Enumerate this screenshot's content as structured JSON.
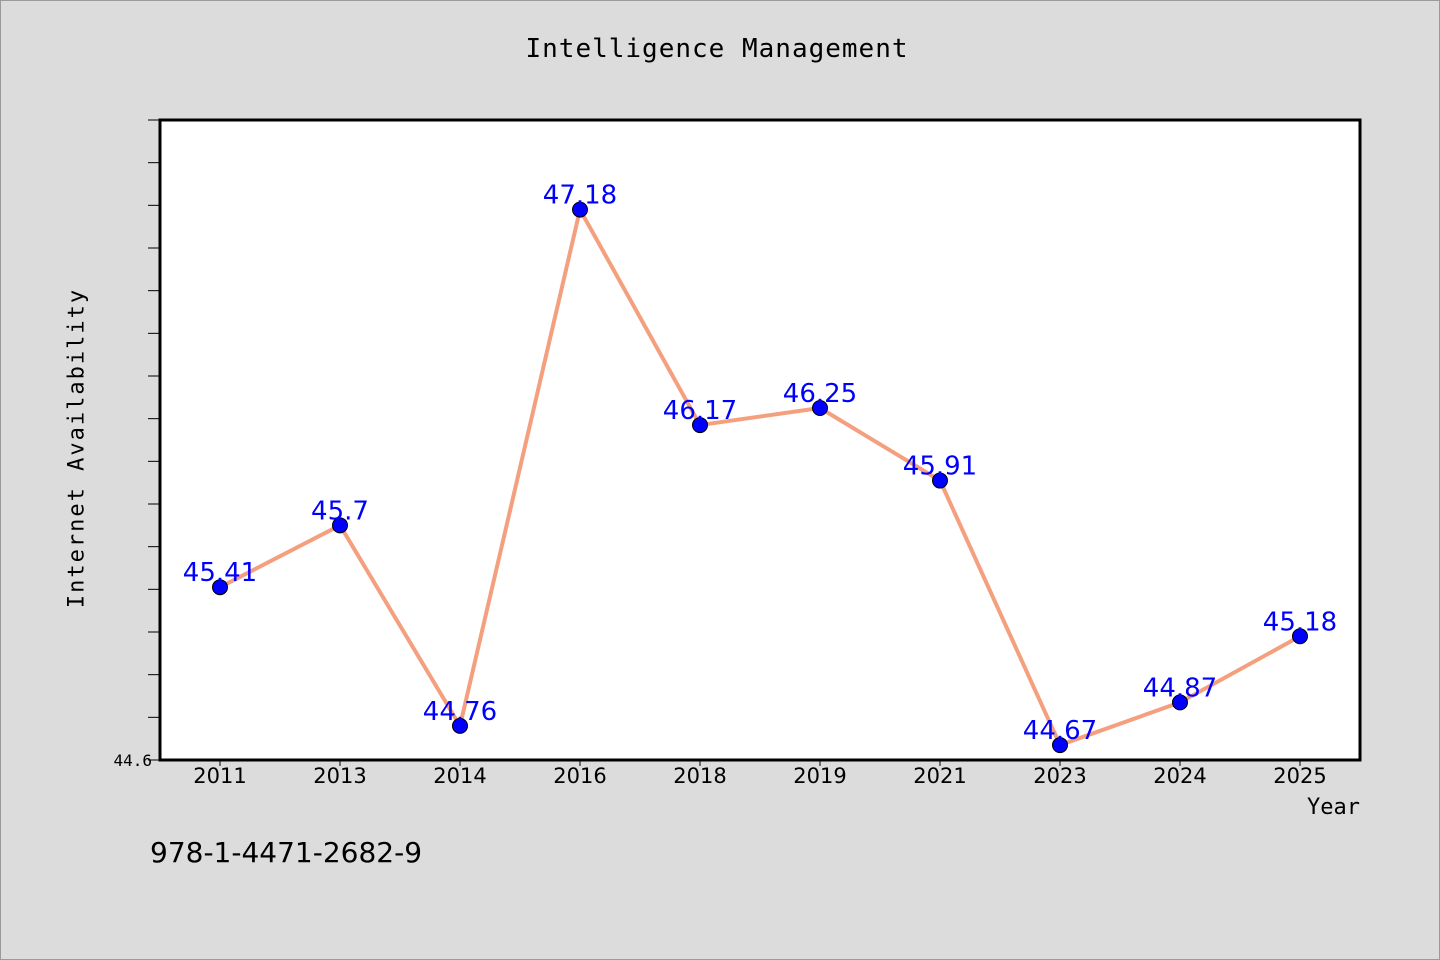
{
  "chart_data": {
    "type": "line",
    "title": "Intelligence Management",
    "xlabel": "Year",
    "ylabel": "Internet Availability",
    "categories": [
      "2011",
      "2013",
      "2014",
      "2016",
      "2018",
      "2019",
      "2021",
      "2023",
      "2024",
      "2025"
    ],
    "series": [
      {
        "values": [
          45.41,
          45.7,
          44.76,
          47.18,
          46.17,
          46.25,
          45.91,
          44.67,
          44.87,
          45.18
        ],
        "labels": [
          "45.41",
          "45.7",
          "44.76",
          "47.18",
          "46.17",
          "46.25",
          "45.91",
          "44.67",
          "44.87",
          "45.18"
        ]
      }
    ],
    "ylim": [
      44.6,
      47.6
    ],
    "y_tick_labels": [
      "44.6"
    ],
    "line_color": "#f4a07f",
    "marker_color": "#0000ff",
    "label_color": "#0000ff",
    "grid": false,
    "legend": "none"
  },
  "footer": {
    "isbn": "978-1-4471-2682-9"
  }
}
